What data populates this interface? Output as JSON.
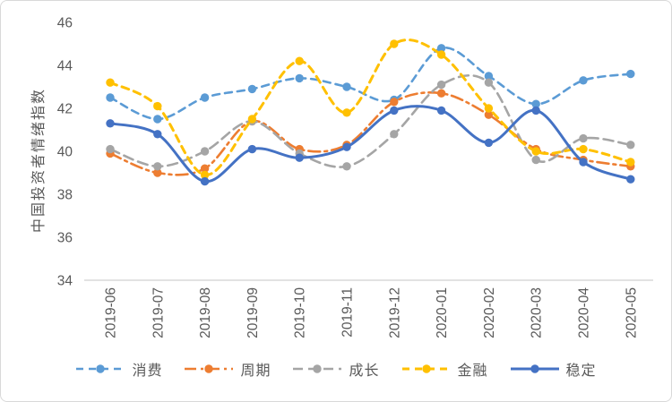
{
  "chart_data": {
    "type": "line",
    "title": "",
    "xlabel": "",
    "ylabel": "中国投资者情绪指数",
    "x": [
      "2019-06",
      "2019-07",
      "2019-08",
      "2019-09",
      "2019-10",
      "2019-11",
      "2019-12",
      "2020-01",
      "2020-02",
      "2020-03",
      "2020-04",
      "2020-05"
    ],
    "yticks": [
      46,
      44,
      42,
      40,
      38,
      36,
      34
    ],
    "ylim": [
      34,
      46
    ],
    "grid": false,
    "smoothed_lines": true,
    "legend_position": "bottom",
    "axis_text_color": "#595959",
    "axis_line_color": "#d9d9d9",
    "series": [
      {
        "name": "消费",
        "color": "#5B9BD5",
        "line_style": "dashed",
        "line_width": 2.6,
        "marker": "circle",
        "values": [
          42.5,
          41.5,
          42.5,
          42.9,
          43.4,
          43.0,
          42.4,
          44.8,
          43.5,
          42.2,
          43.3,
          43.6
        ]
      },
      {
        "name": "周期",
        "color": "#ED7D31",
        "line_style": "dash-dot",
        "line_width": 2.6,
        "marker": "circle",
        "values": [
          39.9,
          39.0,
          39.2,
          41.4,
          40.1,
          40.3,
          42.3,
          42.7,
          41.7,
          40.1,
          39.6,
          39.3
        ]
      },
      {
        "name": "成长",
        "color": "#A5A5A5",
        "line_style": "long-dash",
        "line_width": 2.6,
        "marker": "circle",
        "values": [
          40.1,
          39.3,
          40.0,
          41.4,
          39.9,
          39.3,
          40.8,
          43.1,
          43.2,
          39.6,
          40.6,
          40.3
        ]
      },
      {
        "name": "金融",
        "color": "#FFC000",
        "line_style": "dashed",
        "line_width": 3,
        "marker": "circle",
        "values": [
          43.2,
          42.1,
          38.9,
          41.5,
          44.2,
          41.8,
          45.0,
          44.5,
          42.0,
          40.0,
          40.1,
          39.5
        ]
      },
      {
        "name": "稳定",
        "color": "#4472C4",
        "line_style": "solid",
        "line_width": 3,
        "marker": "circle",
        "values": [
          41.3,
          40.8,
          38.6,
          40.1,
          39.7,
          40.2,
          41.9,
          41.9,
          40.4,
          41.9,
          39.5,
          38.7
        ]
      }
    ]
  }
}
